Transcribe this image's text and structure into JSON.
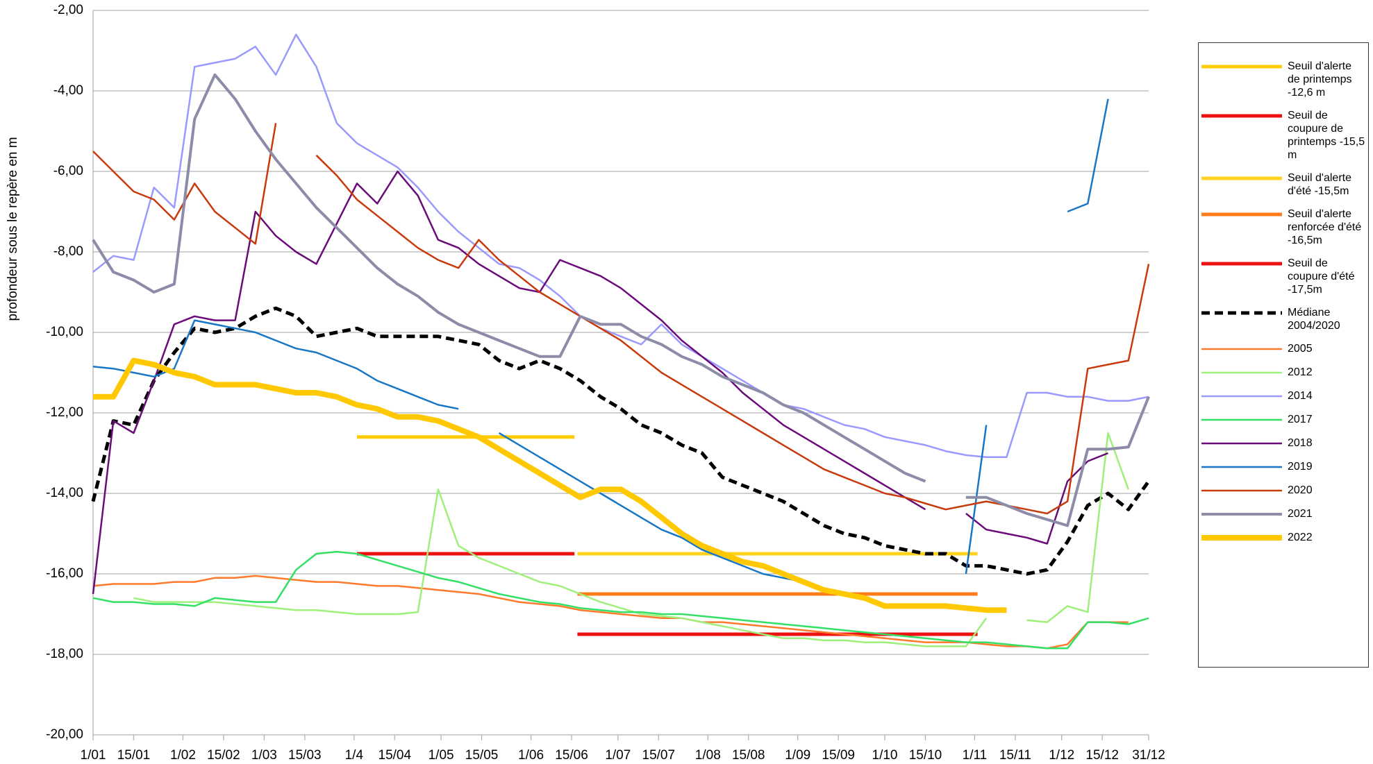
{
  "chart_data": {
    "type": "line",
    "ylabel": "profondeur sous le repère en m",
    "xlim": [
      0,
      364
    ],
    "ylim": [
      -20,
      -2
    ],
    "xticks": [
      {
        "value": 0,
        "label": "1/01"
      },
      {
        "value": 14,
        "label": "15/01"
      },
      {
        "value": 31,
        "label": "1/02"
      },
      {
        "value": 45,
        "label": "15/02"
      },
      {
        "value": 59,
        "label": "1/03"
      },
      {
        "value": 73,
        "label": "15/03"
      },
      {
        "value": 90,
        "label": "1/4"
      },
      {
        "value": 104,
        "label": "15/04"
      },
      {
        "value": 120,
        "label": "1/05"
      },
      {
        "value": 134,
        "label": "15/05"
      },
      {
        "value": 151,
        "label": "1/06"
      },
      {
        "value": 165,
        "label": "15/06"
      },
      {
        "value": 181,
        "label": "1/07"
      },
      {
        "value": 195,
        "label": "15/07"
      },
      {
        "value": 212,
        "label": "1/08"
      },
      {
        "value": 226,
        "label": "15/08"
      },
      {
        "value": 243,
        "label": "1/09"
      },
      {
        "value": 257,
        "label": "15/09"
      },
      {
        "value": 273,
        "label": "1/10"
      },
      {
        "value": 287,
        "label": "15/10"
      },
      {
        "value": 304,
        "label": "1/11"
      },
      {
        "value": 318,
        "label": "15/11"
      },
      {
        "value": 334,
        "label": "1/12"
      },
      {
        "value": 348,
        "label": "15/12"
      },
      {
        "value": 364,
        "label": "31/12"
      }
    ],
    "yticks": [
      {
        "value": -2,
        "label": "-2,00"
      },
      {
        "value": -4,
        "label": "-4,00"
      },
      {
        "value": -6,
        "label": "-6,00"
      },
      {
        "value": -8,
        "label": "-8,00"
      },
      {
        "value": -10,
        "label": "-10,00"
      },
      {
        "value": -12,
        "label": "-12,00"
      },
      {
        "value": -14,
        "label": "-14,00"
      },
      {
        "value": -16,
        "label": "-16,00"
      },
      {
        "value": -18,
        "label": "-18,00"
      },
      {
        "value": -20,
        "label": "-20,00"
      }
    ],
    "grid": true,
    "legend": "right",
    "x": [
      0,
      7,
      14,
      21,
      28,
      35,
      42,
      49,
      56,
      63,
      70,
      77,
      84,
      91,
      98,
      105,
      112,
      119,
      126,
      133,
      140,
      147,
      154,
      161,
      168,
      175,
      182,
      189,
      196,
      203,
      210,
      217,
      224,
      231,
      238,
      245,
      252,
      259,
      266,
      273,
      280,
      287,
      294,
      301,
      308,
      315,
      322,
      329,
      336,
      343,
      350,
      357,
      364
    ],
    "series": [
      {
        "name": "Seuil d'alerte de printemps -12,6 m",
        "color": "#ffcc00",
        "linewidth": 5,
        "x": [
          91,
          166
        ],
        "values": [
          -12.6,
          -12.6
        ]
      },
      {
        "name": "Seuil de coupure de printemps -15,5 m",
        "color": "#ee1111",
        "linewidth": 5,
        "x": [
          91,
          166
        ],
        "values": [
          -15.5,
          -15.5
        ]
      },
      {
        "name": "Seuil d'alerte d'été -15,5m",
        "color": "#ffd320",
        "linewidth": 5,
        "x": [
          167,
          305
        ],
        "values": [
          -15.5,
          -15.5
        ]
      },
      {
        "name": "Seuil d'alerte renforcée d'été -16,5m",
        "color": "#ff7c1a",
        "linewidth": 5,
        "x": [
          167,
          305
        ],
        "values": [
          -16.5,
          -16.5
        ]
      },
      {
        "name": "Seuil de coupure d'été -17,5m",
        "color": "#ee1111",
        "linewidth": 5,
        "x": [
          167,
          305
        ],
        "values": [
          -17.5,
          -17.5
        ]
      },
      {
        "name": "Médiane 2004/2020",
        "color": "#000000",
        "linewidth": 5,
        "dashed": true,
        "values": [
          -14.2,
          -12.2,
          -12.3,
          -11.2,
          -10.5,
          -9.9,
          -10,
          -9.9,
          -9.6,
          -9.4,
          -9.6,
          -10.1,
          -10,
          -9.9,
          -10.1,
          -10.1,
          -10.1,
          -10.1,
          -10.2,
          -10.3,
          -10.7,
          -10.9,
          -10.7,
          -10.9,
          -11.2,
          -11.6,
          -11.9,
          -12.3,
          -12.5,
          -12.8,
          -13,
          -13.6,
          -13.8,
          -14,
          -14.2,
          -14.5,
          -14.8,
          -15,
          -15.1,
          -15.3,
          -15.4,
          -15.5,
          -15.5,
          -15.8,
          -15.8,
          -15.9,
          -16,
          -15.9,
          -15.2,
          -14.3,
          -14,
          -14.4,
          -13.7
        ]
      },
      {
        "name": "2005",
        "color": "#ff7a2a",
        "linewidth": 2.5,
        "values": [
          -16.3,
          -16.25,
          -16.25,
          -16.25,
          -16.2,
          -16.2,
          -16.1,
          -16.1,
          -16.05,
          -16.1,
          -16.15,
          -16.2,
          -16.2,
          -16.25,
          -16.3,
          -16.3,
          -16.35,
          -16.4,
          -16.45,
          -16.5,
          -16.6,
          -16.7,
          -16.75,
          -16.8,
          -16.9,
          -16.95,
          -17,
          -17.05,
          -17.1,
          -17.1,
          -17.2,
          -17.2,
          -17.25,
          -17.3,
          -17.35,
          -17.4,
          -17.45,
          -17.5,
          -17.55,
          -17.6,
          -17.65,
          -17.7,
          -17.7,
          -17.7,
          -17.75,
          -17.8,
          -17.8,
          -17.85,
          -17.75,
          -17.2,
          -17.2,
          -17.2,
          null
        ]
      },
      {
        "name": "2012",
        "color": "#9ef07a",
        "linewidth": 2.5,
        "values": [
          null,
          null,
          -16.6,
          -16.7,
          -16.7,
          -16.7,
          -16.7,
          -16.75,
          -16.8,
          -16.85,
          -16.9,
          -16.9,
          -16.95,
          -17,
          -17,
          -17,
          -16.95,
          -13.9,
          -15.3,
          -15.6,
          -15.8,
          -16,
          -16.2,
          -16.3,
          -16.5,
          -16.7,
          -16.85,
          -17,
          -17.05,
          -17.1,
          -17.2,
          -17.3,
          -17.4,
          -17.5,
          -17.6,
          -17.6,
          -17.65,
          -17.65,
          -17.7,
          -17.7,
          -17.75,
          -17.8,
          -17.8,
          -17.8,
          -17.1,
          null,
          -17.15,
          -17.2,
          -16.8,
          -16.95,
          -12.5,
          -13.9,
          null
        ]
      },
      {
        "name": "2014",
        "color": "#9999ff",
        "linewidth": 2.5,
        "values": [
          -8.5,
          -8.1,
          -8.2,
          -6.4,
          -6.9,
          -3.4,
          -3.3,
          -3.2,
          -2.9,
          -3.6,
          -2.6,
          -3.4,
          -4.8,
          -5.3,
          -5.6,
          -5.9,
          -6.4,
          -7,
          -7.5,
          -7.9,
          -8.3,
          -8.4,
          -8.7,
          -9.1,
          -9.6,
          -9.9,
          -10.1,
          -10.3,
          -9.8,
          -10.3,
          -10.6,
          -10.9,
          -11.2,
          -11.5,
          -11.8,
          -11.9,
          -12.1,
          -12.3,
          -12.4,
          -12.6,
          -12.7,
          -12.8,
          -12.95,
          -13.05,
          -13.1,
          -13.1,
          -11.5,
          -11.5,
          -11.6,
          -11.6,
          -11.7,
          -11.7,
          -11.6
        ]
      },
      {
        "name": "2017",
        "color": "#33e066",
        "linewidth": 2.5,
        "values": [
          -16.6,
          -16.7,
          -16.7,
          -16.75,
          -16.75,
          -16.8,
          -16.6,
          -16.65,
          -16.7,
          -16.7,
          -15.9,
          -15.5,
          -15.45,
          -15.5,
          -15.65,
          -15.8,
          -15.95,
          -16.1,
          -16.2,
          -16.35,
          -16.5,
          -16.6,
          -16.7,
          -16.75,
          -16.85,
          -16.9,
          -16.95,
          -16.95,
          -17,
          -17,
          -17.05,
          -17.1,
          -17.15,
          -17.2,
          -17.25,
          -17.3,
          -17.35,
          -17.4,
          -17.45,
          -17.5,
          -17.55,
          -17.6,
          -17.65,
          -17.7,
          -17.7,
          -17.75,
          -17.8,
          -17.85,
          -17.85,
          -17.2,
          -17.2,
          -17.25,
          -17.1
        ]
      },
      {
        "name": "2018",
        "color": "#6b0b7a",
        "linewidth": 2.5,
        "values": [
          -16.5,
          -12.2,
          -12.5,
          -11.2,
          -9.8,
          -9.6,
          -9.7,
          -9.7,
          -7,
          -7.6,
          -8,
          -8.3,
          -7.3,
          -6.3,
          -6.8,
          -6,
          -6.6,
          -7.7,
          -7.9,
          -8.3,
          -8.6,
          -8.9,
          -9,
          -8.2,
          -8.4,
          -8.6,
          -8.9,
          -9.3,
          -9.7,
          -10.2,
          -10.6,
          -11,
          -11.5,
          -11.9,
          -12.3,
          -12.6,
          -12.9,
          -13.2,
          -13.5,
          -13.8,
          -14.1,
          -14.4,
          null,
          -14.5,
          -14.9,
          -15,
          -15.1,
          -15.25,
          -13.7,
          -13.2,
          -13,
          null,
          null
        ]
      },
      {
        "name": "2019",
        "color": "#1777c6",
        "linewidth": 2.5,
        "values": [
          -10.85,
          -10.9,
          -11,
          -11.1,
          -10.9,
          -9.7,
          -9.8,
          -9.9,
          -10,
          -10.2,
          -10.4,
          -10.5,
          -10.7,
          -10.9,
          -11.2,
          -11.4,
          -11.6,
          -11.8,
          -11.9,
          null,
          -12.5,
          -12.8,
          -13.1,
          -13.4,
          -13.7,
          -14,
          -14.3,
          -14.6,
          -14.9,
          -15.1,
          -15.4,
          -15.6,
          -15.8,
          -16,
          -16.1,
          -16.2,
          -16.4,
          -16.5,
          null,
          null,
          null,
          null,
          null,
          -16,
          -12.3,
          null,
          null,
          null,
          -7,
          -6.8,
          -4.2,
          null,
          null
        ]
      },
      {
        "name": "2020",
        "color": "#c83a0c",
        "linewidth": 2.5,
        "values": [
          -5.5,
          -6,
          -6.5,
          -6.7,
          -7.2,
          -6.3,
          -7,
          -7.4,
          -7.8,
          -4.8,
          null,
          -5.6,
          -6.1,
          -6.7,
          -7.1,
          -7.5,
          -7.9,
          -8.2,
          -8.4,
          -7.7,
          -8.2,
          -8.6,
          -9,
          -9.3,
          -9.6,
          -9.9,
          -10.2,
          -10.6,
          -11,
          -11.3,
          -11.6,
          -11.9,
          -12.2,
          -12.5,
          -12.8,
          -13.1,
          -13.4,
          -13.6,
          -13.8,
          -14,
          -14.1,
          -14.25,
          -14.4,
          -14.3,
          -14.2,
          -14.3,
          -14.4,
          -14.5,
          -14.2,
          -10.9,
          -10.8,
          -10.7,
          -8.3
        ]
      },
      {
        "name": "2021",
        "color": "#8c8ca8",
        "linewidth": 4,
        "values": [
          -7.7,
          -8.5,
          -8.7,
          -9,
          -8.8,
          -4.7,
          -3.6,
          -4.2,
          -5,
          -5.7,
          -6.3,
          -6.9,
          -7.4,
          -7.9,
          -8.4,
          -8.8,
          -9.1,
          -9.5,
          -9.8,
          -10,
          -10.2,
          -10.4,
          -10.6,
          -10.6,
          -9.6,
          -9.8,
          -9.8,
          -10.1,
          -10.3,
          -10.6,
          -10.8,
          -11.1,
          -11.3,
          -11.5,
          -11.8,
          -12,
          -12.3,
          -12.6,
          -12.9,
          -13.2,
          -13.5,
          -13.7,
          null,
          -14.1,
          -14.1,
          -14.3,
          -14.5,
          -14.65,
          -14.8,
          -12.9,
          -12.9,
          -12.85,
          -11.6
        ]
      },
      {
        "name": "2022",
        "color": "#ffc800",
        "linewidth": 8,
        "values": [
          -11.6,
          -11.6,
          -10.7,
          -10.8,
          -11,
          -11.1,
          -11.3,
          -11.3,
          -11.3,
          -11.4,
          -11.5,
          -11.5,
          -11.6,
          -11.8,
          -11.9,
          -12.1,
          -12.1,
          -12.2,
          -12.4,
          -12.6,
          -12.9,
          -13.2,
          -13.5,
          -13.8,
          -14.1,
          -13.9,
          -13.9,
          -14.2,
          -14.6,
          -15,
          -15.3,
          -15.5,
          -15.7,
          -15.8,
          -16,
          -16.2,
          -16.4,
          -16.5,
          -16.6,
          -16.8,
          -16.8,
          -16.8,
          -16.8,
          -16.85,
          -16.9,
          -16.9,
          null,
          null,
          null,
          null,
          null,
          null,
          null
        ]
      }
    ]
  }
}
